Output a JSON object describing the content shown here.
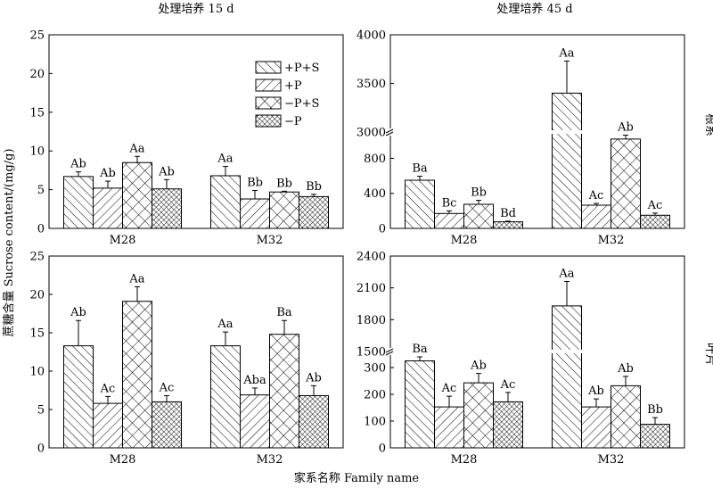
{
  "figure": {
    "col_titles": [
      "处理培养 15 d",
      "处理培养 45 d"
    ],
    "row_labels": [
      "根系",
      "叶片"
    ],
    "ylabel": "蔗糖含量 Sucrose content/(mg/g)",
    "xlabel": "家系名称 Family name"
  },
  "legend": {
    "entries": [
      "+P+S",
      "+P",
      "−P+S",
      "−P"
    ],
    "placement": "top-right of top-left panel"
  },
  "chart_data": [
    {
      "panel": "root-15d",
      "type": "bar",
      "categories": [
        "M28",
        "M32"
      ],
      "ylim": [
        0,
        25
      ],
      "yticks": [
        "0",
        "5",
        "10",
        "15",
        "20",
        "25"
      ],
      "series": [
        {
          "name": "+P+S",
          "values": [
            6.7,
            6.8
          ],
          "errors": [
            0.6,
            1.2
          ],
          "labels": [
            "Ab",
            "Aa"
          ]
        },
        {
          "name": "+P",
          "values": [
            5.2,
            3.8
          ],
          "errors": [
            0.9,
            1.1
          ],
          "labels": [
            "Ab",
            "Bb"
          ]
        },
        {
          "name": "−P+S",
          "values": [
            8.5,
            4.7
          ],
          "errors": [
            0.8,
            0.1
          ],
          "labels": [
            "Aa",
            "Bb"
          ]
        },
        {
          "name": "−P",
          "values": [
            5.1,
            4.1
          ],
          "errors": [
            1.2,
            0.3
          ],
          "labels": [
            "Ab",
            "Bb"
          ]
        }
      ]
    },
    {
      "panel": "root-45d",
      "type": "bar",
      "categories": [
        "M28",
        "M32"
      ],
      "axis_break": {
        "lower": [
          0,
          1100
        ],
        "upper": [
          3000,
          4000
        ]
      },
      "yticks": [
        "0",
        "400",
        "800",
        "3000",
        "3500",
        "4000"
      ],
      "series": [
        {
          "name": "+P+S",
          "values": [
            550,
            3400
          ],
          "errors": [
            45,
            330
          ],
          "labels": [
            "Ba",
            "Aa"
          ]
        },
        {
          "name": "+P",
          "values": [
            170,
            265
          ],
          "errors": [
            30,
            20
          ],
          "labels": [
            "Bc",
            "Ac"
          ]
        },
        {
          "name": "−P+S",
          "values": [
            275,
            1020
          ],
          "errors": [
            45,
            45
          ],
          "labels": [
            "Bb",
            "Ab"
          ]
        },
        {
          "name": "−P",
          "values": [
            75,
            150
          ],
          "errors": [
            8,
            25
          ],
          "labels": [
            "Bd",
            "Ac"
          ]
        }
      ]
    },
    {
      "panel": "leaf-15d",
      "type": "bar",
      "categories": [
        "M28",
        "M32"
      ],
      "ylim": [
        0,
        25
      ],
      "yticks": [
        "0",
        "5",
        "10",
        "15",
        "20",
        "25"
      ],
      "series": [
        {
          "name": "+P+S",
          "values": [
            13.3,
            13.3
          ],
          "errors": [
            3.3,
            1.8
          ],
          "labels": [
            "Ab",
            "Aa"
          ]
        },
        {
          "name": "+P",
          "values": [
            5.8,
            6.9
          ],
          "errors": [
            0.9,
            0.9
          ],
          "labels": [
            "Ac",
            "Aba"
          ]
        },
        {
          "name": "−P+S",
          "values": [
            19.1,
            14.8
          ],
          "errors": [
            1.9,
            1.8
          ],
          "labels": [
            "Aa",
            "Ba"
          ]
        },
        {
          "name": "−P",
          "values": [
            6.0,
            6.8
          ],
          "errors": [
            0.8,
            1.3
          ],
          "labels": [
            "Ac",
            "Ab"
          ]
        }
      ]
    },
    {
      "panel": "leaf-45d",
      "type": "bar",
      "categories": [
        "M28",
        "M32"
      ],
      "axis_break": {
        "lower": [
          0,
          360
        ],
        "upper": [
          1500,
          2400
        ]
      },
      "yticks": [
        "0",
        "100",
        "200",
        "300",
        "1500",
        "1800",
        "2100",
        "2400"
      ],
      "series": [
        {
          "name": "+P+S",
          "values": [
            325,
            1930
          ],
          "errors": [
            15,
            230
          ],
          "labels": [
            "Ba",
            "Aa"
          ]
        },
        {
          "name": "+P",
          "values": [
            153,
            153
          ],
          "errors": [
            40,
            30
          ],
          "labels": [
            "Ac",
            "Ab"
          ]
        },
        {
          "name": "−P+S",
          "values": [
            243,
            232
          ],
          "errors": [
            35,
            35
          ],
          "labels": [
            "Ab",
            "Ab"
          ]
        },
        {
          "name": "−P",
          "values": [
            172,
            88
          ],
          "errors": [
            35,
            25
          ],
          "labels": [
            "Ac",
            "Bb"
          ]
        }
      ]
    }
  ]
}
